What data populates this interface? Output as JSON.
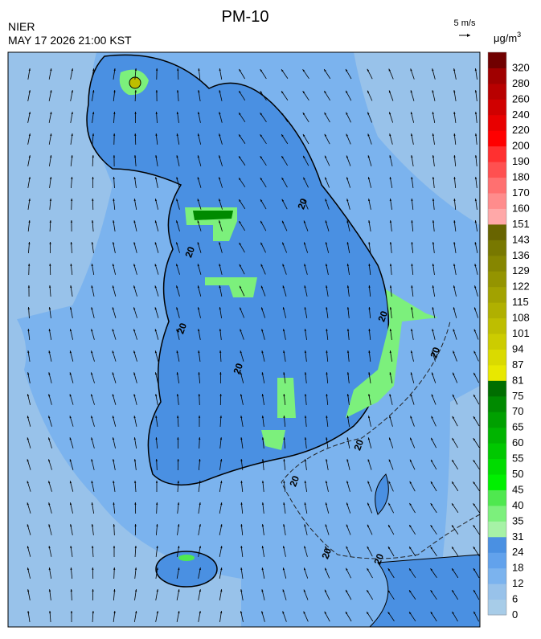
{
  "header": {
    "title": "PM-10",
    "source": "NIER",
    "timestamp": "MAY 17 2026 21:00 KST",
    "wind_scale": "5 m/s"
  },
  "map": {
    "contour_labels": [
      "20",
      "20",
      "20",
      "20",
      "20",
      "20",
      "20",
      "20",
      "20",
      "20"
    ]
  },
  "legend": {
    "unit_base": "μg/m",
    "unit_exponent": "3",
    "levels": [
      {
        "label": "0",
        "color": "#a7cce8"
      },
      {
        "label": "6",
        "color": "#98c2ea"
      },
      {
        "label": "12",
        "color": "#7bb3ee"
      },
      {
        "label": "18",
        "color": "#62a2ec"
      },
      {
        "label": "24",
        "color": "#4a90e2"
      },
      {
        "label": "31",
        "color": "#a6f2a6"
      },
      {
        "label": "35",
        "color": "#7cf07c"
      },
      {
        "label": "40",
        "color": "#4fe84f"
      },
      {
        "label": "45",
        "color": "#00f000"
      },
      {
        "label": "50",
        "color": "#00dc00"
      },
      {
        "label": "55",
        "color": "#00c800"
      },
      {
        "label": "60",
        "color": "#00b400"
      },
      {
        "label": "65",
        "color": "#00a000"
      },
      {
        "label": "70",
        "color": "#008a00"
      },
      {
        "label": "75",
        "color": "#006e00"
      },
      {
        "label": "81",
        "color": "#e8e800"
      },
      {
        "label": "87",
        "color": "#dada00"
      },
      {
        "label": "94",
        "color": "#cccc00"
      },
      {
        "label": "101",
        "color": "#bebe00"
      },
      {
        "label": "108",
        "color": "#b0b000"
      },
      {
        "label": "115",
        "color": "#a2a200"
      },
      {
        "label": "122",
        "color": "#949400"
      },
      {
        "label": "129",
        "color": "#868600"
      },
      {
        "label": "136",
        "color": "#787800"
      },
      {
        "label": "143",
        "color": "#686400"
      },
      {
        "label": "151",
        "color": "#ffa8a8"
      },
      {
        "label": "160",
        "color": "#ff8c8c"
      },
      {
        "label": "170",
        "color": "#ff7070"
      },
      {
        "label": "180",
        "color": "#ff5050"
      },
      {
        "label": "190",
        "color": "#ff3030"
      },
      {
        "label": "200",
        "color": "#ff0000"
      },
      {
        "label": "220",
        "color": "#e80000"
      },
      {
        "label": "240",
        "color": "#d00000"
      },
      {
        "label": "260",
        "color": "#b80000"
      },
      {
        "label": "280",
        "color": "#a00000"
      },
      {
        "label": "320",
        "color": "#700000"
      }
    ]
  }
}
